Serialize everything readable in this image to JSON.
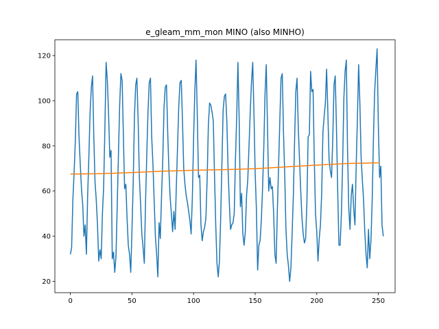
{
  "chart_data": {
    "type": "line",
    "title": "e_gleam_mm_mon MINO (also MINHO)",
    "xlabel": "",
    "ylabel": "",
    "xlim": [
      -12.6,
      263.6
    ],
    "ylim": [
      15,
      127
    ],
    "xticks": [
      0,
      50,
      100,
      150,
      200,
      250
    ],
    "yticks": [
      20,
      40,
      60,
      80,
      100,
      120
    ],
    "grid": false,
    "legend": "none",
    "colors": {
      "series1": "#1f77b4",
      "series2": "#ff7f0e"
    },
    "series": [
      {
        "values": [
          32,
          35,
          56,
          68,
          82,
          103,
          104,
          84,
          72,
          61,
          54,
          40,
          45,
          32,
          58,
          75,
          95,
          106,
          111,
          84,
          64,
          56,
          45,
          29,
          34,
          30,
          50,
          62,
          88,
          117,
          109,
          94,
          75,
          78,
          30,
          33,
          24,
          31,
          53,
          76,
          98,
          112,
          109,
          85,
          61,
          63,
          48,
          36,
          32,
          24,
          43,
          64,
          93,
          107,
          110,
          91,
          66,
          54,
          41,
          35,
          28,
          55,
          76,
          95,
          108,
          110,
          84,
          72,
          56,
          40,
          32,
          22,
          46,
          39,
          58,
          74,
          97,
          106,
          107,
          86,
          69,
          57,
          50,
          42,
          51,
          43,
          62,
          80,
          98,
          108,
          109,
          91,
          70,
          63,
          58,
          55,
          51,
          47,
          41,
          57,
          83,
          104,
          118,
          94,
          66,
          67,
          45,
          38,
          42,
          44,
          48,
          65,
          89,
          99,
          98,
          95,
          91,
          67,
          45,
          28,
          22,
          29,
          48,
          72,
          96,
          102,
          103,
          91,
          70,
          55,
          43,
          45,
          46,
          50,
          74,
          93,
          117,
          92,
          53,
          59,
          41,
          36,
          42,
          58,
          65,
          80,
          95,
          108,
          117,
          95,
          68,
          52,
          25,
          36,
          38,
          47,
          61,
          79,
          103,
          116,
          89,
          60,
          66,
          61,
          62,
          50,
          32,
          28,
          51,
          71,
          91,
          110,
          112,
          86,
          67,
          43,
          32,
          27,
          20,
          26,
          41,
          58,
          82,
          104,
          110,
          88,
          74,
          60,
          48,
          41,
          37,
          39,
          55,
          84,
          85,
          113,
          104,
          105,
          74,
          50,
          42,
          29,
          39,
          45,
          59,
          86,
          93,
          99,
          114,
          95,
          74,
          69,
          66,
          83,
          107,
          111,
          88,
          60,
          36,
          36,
          50,
          72,
          101,
          113,
          118,
          78,
          52,
          43,
          58,
          63,
          52,
          45,
          71,
          92,
          116,
          99,
          75,
          65,
          56,
          42,
          32,
          26,
          43,
          30,
          38,
          56,
          83,
          104,
          114,
          123,
          89,
          66,
          71,
          45,
          40
        ],
        "x_start": 0
      },
      {
        "x": [
          0,
          25,
          50,
          75,
          100,
          125,
          150,
          175,
          200,
          225,
          251
        ],
        "values": [
          67.5,
          67.7,
          68.2,
          68.8,
          69.2,
          69.5,
          69.9,
          70.7,
          71.5,
          72.2,
          72.5
        ]
      }
    ]
  }
}
